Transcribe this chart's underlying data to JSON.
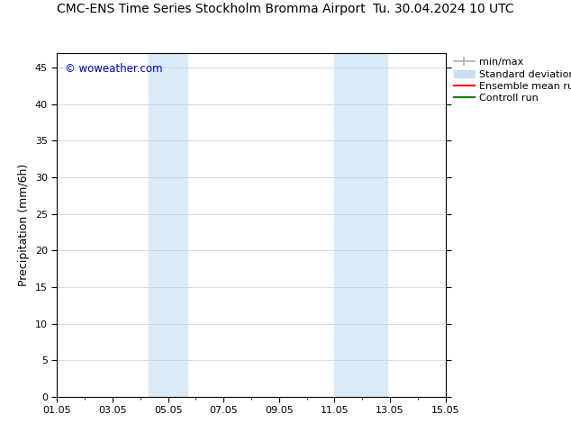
{
  "title_left": "CMC-ENS Time Series Stockholm Bromma Airport",
  "title_right": "Tu. 30.04.2024 10 UTC",
  "ylabel": "Precipitation (mm/6h)",
  "watermark": "© woweather.com",
  "xlim_start": 0.0,
  "xlim_end": 14.0,
  "ylim": [
    0,
    47
  ],
  "yticks": [
    0,
    5,
    10,
    15,
    20,
    25,
    30,
    35,
    40,
    45
  ],
  "xtick_positions": [
    0,
    2,
    4,
    6,
    8,
    10,
    12,
    14
  ],
  "xtick_labels": [
    "01.05",
    "03.05",
    "05.05",
    "07.05",
    "09.05",
    "11.05",
    "13.05",
    "15.05"
  ],
  "shaded_regions": [
    {
      "xmin": 3.3,
      "xmax": 4.7,
      "color": "#daeaf7"
    },
    {
      "xmin": 10.0,
      "xmax": 11.9,
      "color": "#daeaf7"
    }
  ],
  "legend_entries": [
    {
      "label": "min/max",
      "color": "#b0b0b0",
      "lw": 1.2
    },
    {
      "label": "Standard deviation",
      "color": "#ccddf0",
      "lw": 5
    },
    {
      "label": "Ensemble mean run",
      "color": "#ff0000",
      "lw": 1.5
    },
    {
      "label": "Controll run",
      "color": "#008000",
      "lw": 1.5
    }
  ],
  "bg_color": "#ffffff",
  "plot_bg_color": "#ffffff",
  "grid_color": "#cccccc",
  "watermark_color": "#0000cc",
  "title_fontsize": 10,
  "tick_fontsize": 8,
  "ylabel_fontsize": 9,
  "legend_fontsize": 8
}
